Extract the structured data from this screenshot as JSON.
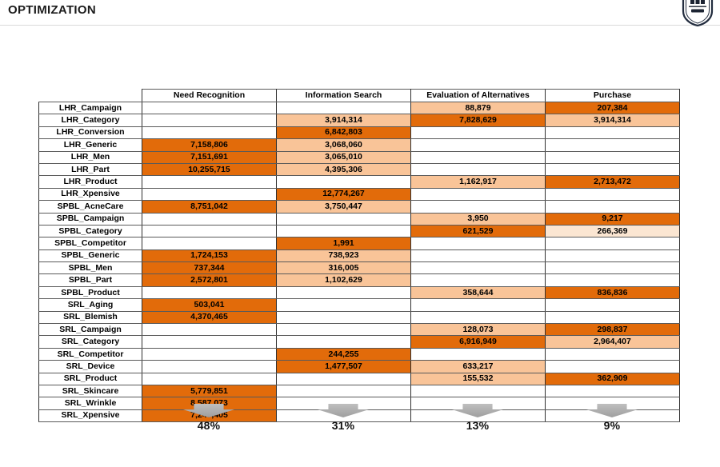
{
  "page": {
    "title": "OPTIMIZATION"
  },
  "logo": {
    "name": "university-crest"
  },
  "colors": {
    "dark_orange": "#E26B0A",
    "light_orange": "#F9C498",
    "pale_orange": "#FBE6D2",
    "arrow_gray": "#9E9E9E",
    "rule_gray": "#D9D9D9"
  },
  "table": {
    "columns": [
      "Need Recognition",
      "Information Search",
      "Evaluation of Alternatives",
      "Purchase"
    ],
    "rows": [
      {
        "label": "LHR_Campaign",
        "cells": [
          {
            "v": "",
            "c": ""
          },
          {
            "v": "",
            "c": ""
          },
          {
            "v": "88,879",
            "c": "l"
          },
          {
            "v": "207,384",
            "c": "d"
          }
        ]
      },
      {
        "label": "LHR_Category",
        "cells": [
          {
            "v": "",
            "c": ""
          },
          {
            "v": "3,914,314",
            "c": "l"
          },
          {
            "v": "7,828,629",
            "c": "d"
          },
          {
            "v": "3,914,314",
            "c": "l"
          }
        ]
      },
      {
        "label": "LHR_Conversion",
        "cells": [
          {
            "v": "",
            "c": ""
          },
          {
            "v": "6,842,803",
            "c": "d"
          },
          {
            "v": "",
            "c": ""
          },
          {
            "v": "",
            "c": ""
          }
        ]
      },
      {
        "label": "LHR_Generic",
        "cells": [
          {
            "v": "7,158,806",
            "c": "d"
          },
          {
            "v": "3,068,060",
            "c": "l"
          },
          {
            "v": "",
            "c": ""
          },
          {
            "v": "",
            "c": ""
          }
        ]
      },
      {
        "label": "LHR_Men",
        "cells": [
          {
            "v": "7,151,691",
            "c": "d"
          },
          {
            "v": "3,065,010",
            "c": "l"
          },
          {
            "v": "",
            "c": ""
          },
          {
            "v": "",
            "c": ""
          }
        ]
      },
      {
        "label": "LHR_Part",
        "cells": [
          {
            "v": "10,255,715",
            "c": "d"
          },
          {
            "v": "4,395,306",
            "c": "l"
          },
          {
            "v": "",
            "c": ""
          },
          {
            "v": "",
            "c": ""
          }
        ]
      },
      {
        "label": "LHR_Product",
        "cells": [
          {
            "v": "",
            "c": ""
          },
          {
            "v": "",
            "c": ""
          },
          {
            "v": "1,162,917",
            "c": "l"
          },
          {
            "v": "2,713,472",
            "c": "d"
          }
        ]
      },
      {
        "label": "LHR_Xpensive",
        "cells": [
          {
            "v": "",
            "c": ""
          },
          {
            "v": "12,774,267",
            "c": "d"
          },
          {
            "v": "",
            "c": ""
          },
          {
            "v": "",
            "c": ""
          }
        ]
      },
      {
        "label": "SPBL_AcneCare",
        "cells": [
          {
            "v": "8,751,042",
            "c": "d"
          },
          {
            "v": "3,750,447",
            "c": "l"
          },
          {
            "v": "",
            "c": ""
          },
          {
            "v": "",
            "c": ""
          }
        ]
      },
      {
        "label": "SPBL_Campaign",
        "cells": [
          {
            "v": "",
            "c": ""
          },
          {
            "v": "",
            "c": ""
          },
          {
            "v": "3,950",
            "c": "l"
          },
          {
            "v": "9,217",
            "c": "d"
          }
        ]
      },
      {
        "label": "SPBL_Category",
        "cells": [
          {
            "v": "",
            "c": ""
          },
          {
            "v": "",
            "c": ""
          },
          {
            "v": "621,529",
            "c": "d"
          },
          {
            "v": "266,369",
            "c": "p"
          }
        ]
      },
      {
        "label": "SPBL_Competitor",
        "cells": [
          {
            "v": "",
            "c": ""
          },
          {
            "v": "1,991",
            "c": "d"
          },
          {
            "v": "",
            "c": ""
          },
          {
            "v": "",
            "c": ""
          }
        ]
      },
      {
        "label": "SPBL_Generic",
        "cells": [
          {
            "v": "1,724,153",
            "c": "d"
          },
          {
            "v": "738,923",
            "c": "l"
          },
          {
            "v": "",
            "c": ""
          },
          {
            "v": "",
            "c": ""
          }
        ]
      },
      {
        "label": "SPBL_Men",
        "cells": [
          {
            "v": "737,344",
            "c": "d"
          },
          {
            "v": "316,005",
            "c": "l"
          },
          {
            "v": "",
            "c": ""
          },
          {
            "v": "",
            "c": ""
          }
        ]
      },
      {
        "label": "SPBL_Part",
        "cells": [
          {
            "v": "2,572,801",
            "c": "d"
          },
          {
            "v": "1,102,629",
            "c": "l"
          },
          {
            "v": "",
            "c": ""
          },
          {
            "v": "",
            "c": ""
          }
        ]
      },
      {
        "label": "SPBL_Product",
        "cells": [
          {
            "v": "",
            "c": ""
          },
          {
            "v": "",
            "c": ""
          },
          {
            "v": "358,644",
            "c": "l"
          },
          {
            "v": "836,836",
            "c": "d"
          }
        ]
      },
      {
        "label": "SRL_Aging",
        "cells": [
          {
            "v": "503,041",
            "c": "d"
          },
          {
            "v": "",
            "c": ""
          },
          {
            "v": "",
            "c": ""
          },
          {
            "v": "",
            "c": ""
          }
        ]
      },
      {
        "label": "SRL_Blemish",
        "cells": [
          {
            "v": "4,370,465",
            "c": "d"
          },
          {
            "v": "",
            "c": ""
          },
          {
            "v": "",
            "c": ""
          },
          {
            "v": "",
            "c": ""
          }
        ]
      },
      {
        "label": "SRL_Campaign",
        "cells": [
          {
            "v": "",
            "c": ""
          },
          {
            "v": "",
            "c": ""
          },
          {
            "v": "128,073",
            "c": "l"
          },
          {
            "v": "298,837",
            "c": "d"
          }
        ]
      },
      {
        "label": "SRL_Category",
        "cells": [
          {
            "v": "",
            "c": ""
          },
          {
            "v": "",
            "c": ""
          },
          {
            "v": "6,916,949",
            "c": "d"
          },
          {
            "v": "2,964,407",
            "c": "l"
          }
        ]
      },
      {
        "label": "SRL_Competitor",
        "cells": [
          {
            "v": "",
            "c": ""
          },
          {
            "v": "244,255",
            "c": "d"
          },
          {
            "v": "",
            "c": ""
          },
          {
            "v": "",
            "c": ""
          }
        ]
      },
      {
        "label": "SRL_Device",
        "cells": [
          {
            "v": "",
            "c": ""
          },
          {
            "v": "1,477,507",
            "c": "d"
          },
          {
            "v": "633,217",
            "c": "l"
          },
          {
            "v": "",
            "c": ""
          }
        ]
      },
      {
        "label": "SRL_Product",
        "cells": [
          {
            "v": "",
            "c": ""
          },
          {
            "v": "",
            "c": ""
          },
          {
            "v": "155,532",
            "c": "l"
          },
          {
            "v": "362,909",
            "c": "d"
          }
        ]
      },
      {
        "label": "SRL_Skincare",
        "cells": [
          {
            "v": "5,779,851",
            "c": "d"
          },
          {
            "v": "",
            "c": ""
          },
          {
            "v": "",
            "c": ""
          },
          {
            "v": "",
            "c": ""
          }
        ]
      },
      {
        "label": "SRL_Wrinkle",
        "cells": [
          {
            "v": "8,587,073",
            "c": "d"
          },
          {
            "v": "",
            "c": ""
          },
          {
            "v": "",
            "c": ""
          },
          {
            "v": "",
            "c": ""
          }
        ]
      },
      {
        "label": "SRL_Xpensive",
        "cells": [
          {
            "v": "7,247,405",
            "c": "d"
          },
          {
            "v": "",
            "c": ""
          },
          {
            "v": "",
            "c": ""
          },
          {
            "v": "",
            "c": ""
          }
        ]
      }
    ]
  },
  "footer": {
    "items": [
      {
        "column": "Need Recognition",
        "value": "48%"
      },
      {
        "column": "Information Search",
        "value": "31%"
      },
      {
        "column": "Evaluation of Alternatives",
        "value": "13%"
      },
      {
        "column": "Purchase",
        "value": "9%"
      }
    ]
  }
}
